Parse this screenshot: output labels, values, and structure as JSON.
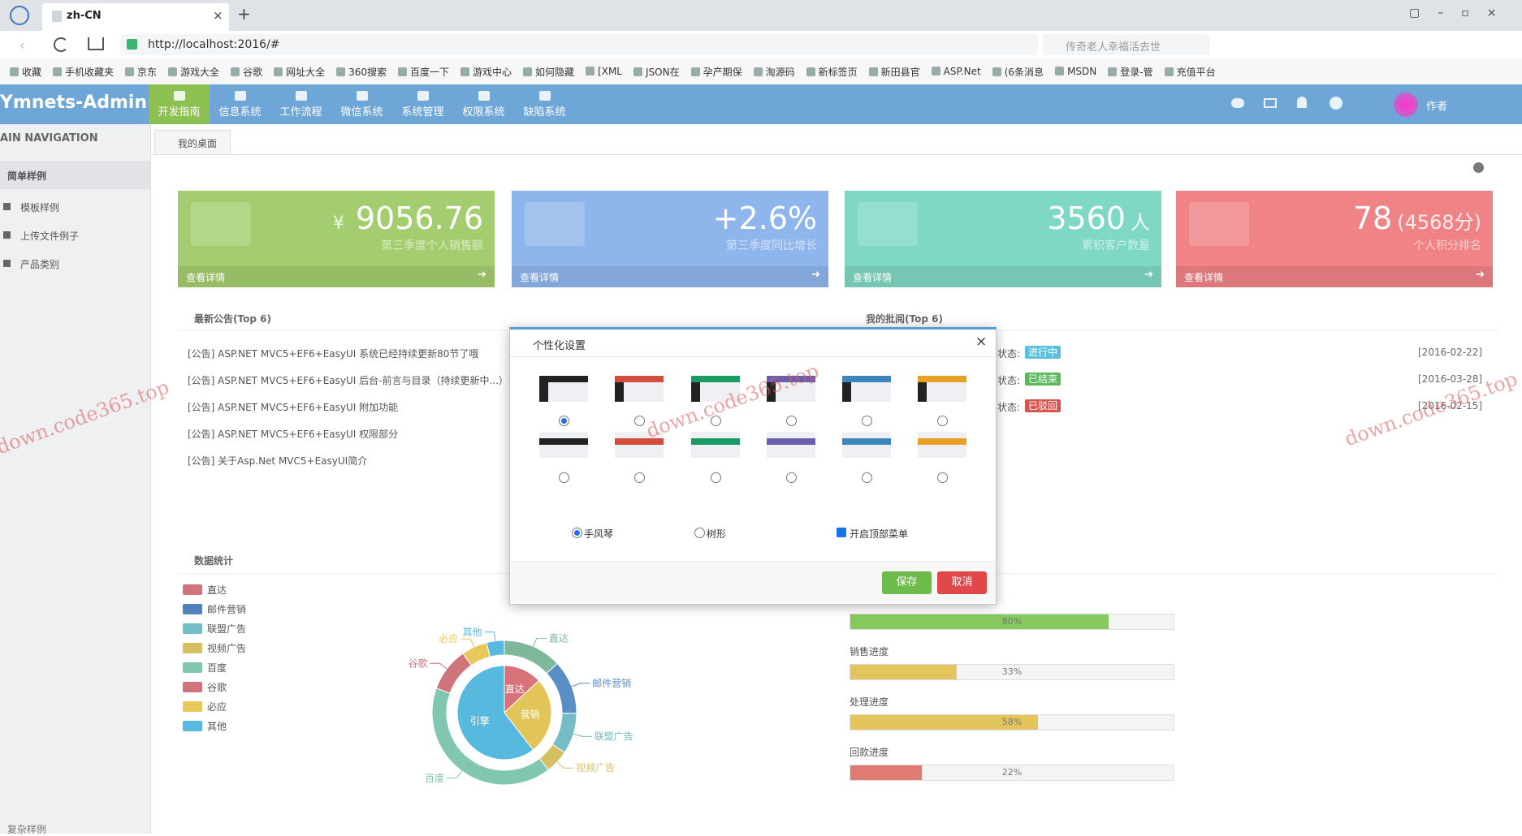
{
  "browser": {
    "tab_title": "zh-CN",
    "url": "http://localhost:2016/#",
    "search_placeholder": "传奇老人幸福活去世",
    "bookmarks": [
      "收藏",
      "手机收藏夹",
      "京东",
      "游戏大全",
      "谷歌",
      "网址大全",
      "360搜索",
      "百度一下",
      "游戏中心",
      "如何隐藏",
      "[XML",
      "JSON在",
      "孕产期保",
      "淘源码",
      "新标签页",
      "新田县官",
      "ASP.Net",
      "(6条消息",
      "MSDN",
      "登录-管",
      "充值平台"
    ]
  },
  "header": {
    "brand": "Ymnets-Admin",
    "nav": [
      "开发指南",
      "信息系统",
      "工作流程",
      "微信系统",
      "系统管理",
      "权限系统",
      "缺陷系统"
    ],
    "active": 0,
    "user": "作者"
  },
  "sidebar": {
    "title": "AIN NAVIGATION",
    "group": "简单样例",
    "items": [
      "模板样例",
      "上传文件例子",
      "产品类别"
    ],
    "bottom_group": "复杂样例"
  },
  "tab": "我的桌面",
  "cards": [
    {
      "prefix": "¥",
      "value": "9056.76",
      "desc": "第三季度个人销售额",
      "link": "查看详情",
      "color": "#a3cd6e"
    },
    {
      "value": "+2.6%",
      "desc": "第三季度同比增长",
      "link": "查看详情",
      "color": "#8fb6ec"
    },
    {
      "value": "3560",
      "suffix": "人",
      "desc": "累积客户数量",
      "link": "查看详情",
      "color": "#7fd8c4"
    },
    {
      "value": "78",
      "suffix": "(4568分)",
      "desc": "个人积分排名",
      "link": "查看详情",
      "color": "#ef8386"
    }
  ],
  "announcements": {
    "title": "最新公告(Top 6)",
    "items": [
      "[公告] ASP.NET MVC5+EF6+EasyUI 系统已经持续更新80节了哦",
      "[公告] ASP.NET MVC5+EF6+EasyUI 后台-前言与目录（持续更新中...）",
      "[公告] ASP.NET MVC5+EF6+EasyUI 附加功能",
      "[公告] ASP.NET MVC5+EF6+EasyUI 权限部分",
      "[公告] 关于Asp.Net MVC5+EasyUI简介"
    ]
  },
  "reviews": {
    "title": "我的批阅(Top 6)",
    "state_label": "状态:",
    "rows": [
      {
        "status": "进行中",
        "color": "#5bc0de",
        "date": "[2016-02-22]"
      },
      {
        "status": "已结束",
        "color": "#5cb85c",
        "date": "[2016-03-28]"
      },
      {
        "status": "已驳回",
        "color": "#d9534f",
        "date": "[2016-02-15]"
      }
    ]
  },
  "stats": {
    "title": "数据统计",
    "inner": [
      {
        "name": "直达",
        "value": 335,
        "color": "#d9737a"
      },
      {
        "name": "营销",
        "value": 679,
        "color": "#e2c458"
      },
      {
        "name": "引擎",
        "value": 1548,
        "color": "#58b9de"
      }
    ],
    "outer": [
      {
        "name": "直达",
        "value": 335,
        "color": "#7fb79a"
      },
      {
        "name": "邮件营销",
        "value": 310,
        "color": "#5a8ec7"
      },
      {
        "name": "联盟广告",
        "value": 234,
        "color": "#76bcc4"
      },
      {
        "name": "视频广告",
        "value": 135,
        "color": "#d6bf62"
      },
      {
        "name": "百度",
        "value": 1048,
        "color": "#80c6b0"
      },
      {
        "name": "谷歌",
        "value": 251,
        "color": "#d0747c"
      },
      {
        "name": "必应",
        "value": 147,
        "color": "#e6c95a"
      },
      {
        "name": "其他",
        "value": 102,
        "color": "#58b9de"
      }
    ],
    "legend_colors": [
      "#d0747c",
      "#4f81bd",
      "#76bcc4",
      "#d6bf62",
      "#80c6b0",
      "#d0747c",
      "#e6c95a",
      "#58b9de"
    ]
  },
  "progress": {
    "max": 100,
    "bars": [
      {
        "value": 80,
        "value_label": "80%",
        "color": "#86c95e"
      },
      {
        "label": "销售进度",
        "value": 33,
        "value_label": "33%",
        "color": "#e4c45c"
      },
      {
        "label": "处理进度",
        "value": 58,
        "value_label": "58%",
        "color": "#e4c45c"
      },
      {
        "label": "回款进度",
        "value": 22,
        "value_label": "22%",
        "color": "#e07b73"
      }
    ]
  },
  "dialog": {
    "title": "个性化设置",
    "close": "×",
    "themes": [
      "#222222",
      "#d24d3b",
      "#1a9b64",
      "#6a5fac",
      "#3c85bd",
      "#e8a125"
    ],
    "selected": 0,
    "menu_options": [
      "手风琴",
      "树形"
    ],
    "menu_selected": 0,
    "top_menu": "开启顶部菜单",
    "top_menu_checked": true,
    "save": "保存",
    "cancel": "取消"
  },
  "watermarks": [
    "down.code365.top",
    "down.code365.top",
    "down.code365.top"
  ]
}
